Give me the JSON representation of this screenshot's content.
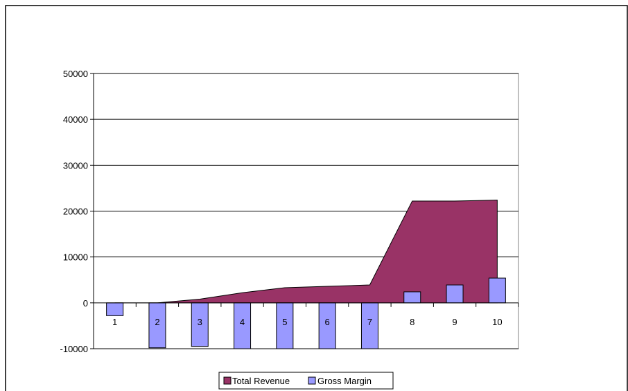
{
  "chart_data": {
    "type": "bar",
    "title": "",
    "xlabel": "",
    "ylabel": "",
    "categories": [
      "1",
      "2",
      "3",
      "4",
      "5",
      "6",
      "7",
      "8",
      "9",
      "10"
    ],
    "ylim": [
      -10000,
      50000
    ],
    "yticks": [
      "50000",
      "40000",
      "30000",
      "20000",
      "10000",
      "0",
      "-10000"
    ],
    "ytick_values": [
      50000,
      40000,
      30000,
      20000,
      10000,
      0,
      -10000
    ],
    "grid": true,
    "legend_position": "bottom",
    "series": [
      {
        "name": "Total Revenue",
        "type": "area",
        "color": "#993366",
        "values": [
          0,
          0,
          800,
          2200,
          3300,
          3600,
          3900,
          22200,
          22200,
          22400
        ]
      },
      {
        "name": "Gross Margin",
        "type": "bar",
        "color": "#9999ff",
        "values": [
          -2800,
          -9800,
          -9500,
          -10800,
          -10800,
          -10800,
          -10800,
          2400,
          3900,
          5400
        ]
      }
    ]
  }
}
